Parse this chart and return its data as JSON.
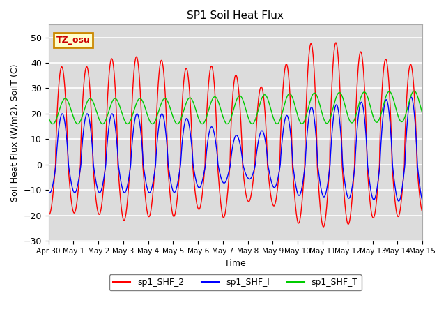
{
  "title": "SP1 Soil Heat Flux",
  "xlabel": "Time",
  "ylabel": "Soil Heat Flux (W/m2), SoilT (C)",
  "ylim": [
    -30,
    55
  ],
  "background_color": "#dcdcdc",
  "grid_color": "white",
  "tz_label": "TZ_osu",
  "tz_box_facecolor": "#ffffcc",
  "tz_box_edgecolor": "#cc8800",
  "tz_text_color": "#cc0000",
  "legend_entries": [
    "sp1_SHF_2",
    "sp1_SHF_l",
    "sp1_SHF_T"
  ],
  "x_tick_labels": [
    "Apr 30",
    "May 1",
    "May 2",
    "May 3",
    "May 4",
    "May 5",
    "May 6",
    "May 7",
    "May 8",
    "May 9",
    "May 10",
    "May 11",
    "May 12",
    "May 13",
    "May 14",
    "May 15"
  ],
  "n_days": 15,
  "points_per_day": 240
}
